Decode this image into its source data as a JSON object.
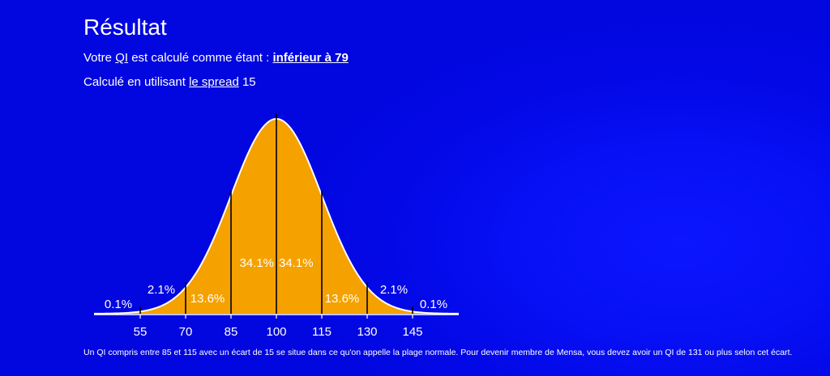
{
  "page": {
    "title": "Résultat",
    "result_prefix": "Votre ",
    "result_link": "QI",
    "result_middle": " est calculé comme étant : ",
    "result_value": "inférieur à 79",
    "spread_prefix": "Calculé en utilisant ",
    "spread_link": "le spread",
    "spread_value": " 15",
    "footnote": "Un QI compris entre 85 et 115 avec un écart de 15 se situe dans ce qu'on appelle la plage normale. Pour devenir membre de Mensa, vous devez avoir un QI de 131 ou plus selon cet écart."
  },
  "chart_data": {
    "type": "area",
    "distribution": "normal",
    "mean": 100,
    "sd": 15,
    "x_ticks": [
      55,
      70,
      85,
      100,
      115,
      130,
      145
    ],
    "bands": [
      {
        "from": 40,
        "to": 55,
        "label": "0.1%"
      },
      {
        "from": 55,
        "to": 70,
        "label": "2.1%"
      },
      {
        "from": 70,
        "to": 85,
        "label": "13.6%"
      },
      {
        "from": 85,
        "to": 100,
        "label": "34.1%"
      },
      {
        "from": 100,
        "to": 115,
        "label": "34.1%"
      },
      {
        "from": 115,
        "to": 130,
        "label": "13.6%"
      },
      {
        "from": 130,
        "to": 145,
        "label": "2.1%"
      },
      {
        "from": 145,
        "to": 160,
        "label": "0.1%"
      }
    ],
    "colors": {
      "fill": "#f5a100",
      "stroke": "#ffffff",
      "lines": "#000000"
    },
    "title": "",
    "xlabel": "",
    "ylabel": ""
  }
}
